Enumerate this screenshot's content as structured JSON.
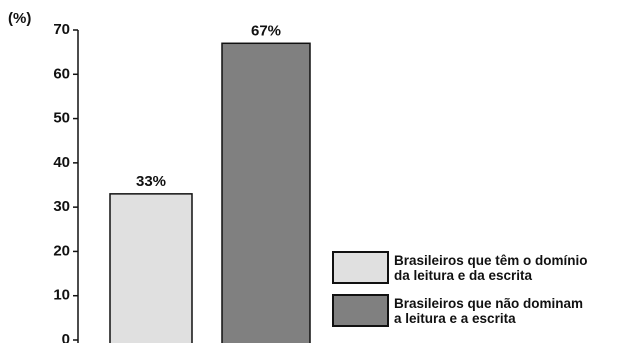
{
  "chart_data": {
    "type": "bar",
    "y_label": "(%)",
    "categories": [
      "Brasileiros que têm o domínio\nda leitura e da escrita",
      "Brasileiros que não dominam\na leitura e a escrita"
    ],
    "values": [
      33,
      67
    ],
    "value_labels": [
      "33%",
      "67%"
    ],
    "colors": [
      "#e0e0e0",
      "#808080"
    ],
    "ylim": [
      0,
      70
    ],
    "yticks": [
      0,
      10,
      20,
      30,
      40,
      50,
      60,
      70
    ],
    "grid": false
  }
}
